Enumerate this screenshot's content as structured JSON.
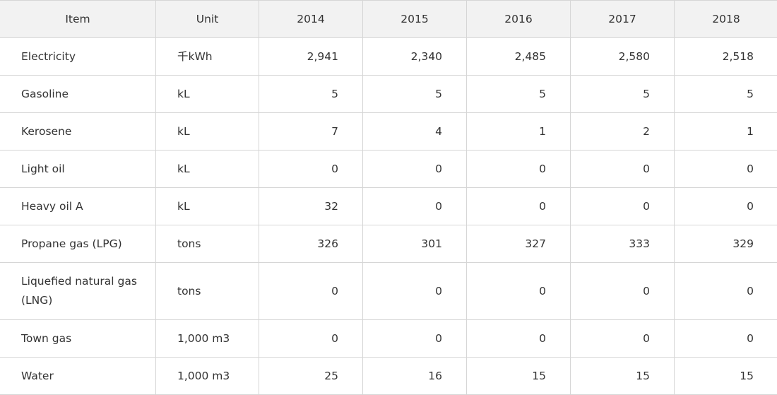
{
  "table": {
    "headers": {
      "item": "Item",
      "unit": "Unit",
      "years": [
        "2014",
        "2015",
        "2016",
        "2017",
        "2018"
      ]
    },
    "rows": [
      {
        "item": "Electricity",
        "unit": "千kWh",
        "values": [
          "2,941",
          "2,340",
          "2,485",
          "2,580",
          "2,518"
        ]
      },
      {
        "item": "Gasoline",
        "unit": "kL",
        "values": [
          "5",
          "5",
          "5",
          "5",
          "5"
        ]
      },
      {
        "item": "Kerosene",
        "unit": "kL",
        "values": [
          "7",
          "4",
          "1",
          "2",
          "1"
        ]
      },
      {
        "item": "Light oil",
        "unit": "kL",
        "values": [
          "0",
          "0",
          "0",
          "0",
          "0"
        ]
      },
      {
        "item": "Heavy oil A",
        "unit": "kL",
        "values": [
          "32",
          "0",
          "0",
          "0",
          "0"
        ]
      },
      {
        "item": "Propane gas (LPG)",
        "unit": "tons",
        "values": [
          "326",
          "301",
          "327",
          "333",
          "329"
        ]
      },
      {
        "item": "Liquefied natural gas (LNG)",
        "unit": "tons",
        "values": [
          "0",
          "0",
          "0",
          "0",
          "0"
        ]
      },
      {
        "item": "Town gas",
        "unit": "1,000 m3",
        "values": [
          "0",
          "0",
          "0",
          "0",
          "0"
        ]
      },
      {
        "item": "Water",
        "unit": "1,000 m3",
        "values": [
          "25",
          "16",
          "15",
          "15",
          "15"
        ]
      }
    ]
  },
  "colors": {
    "header_background": "#f2f2f2",
    "border": "#d6d6d6",
    "text": "#333333"
  }
}
